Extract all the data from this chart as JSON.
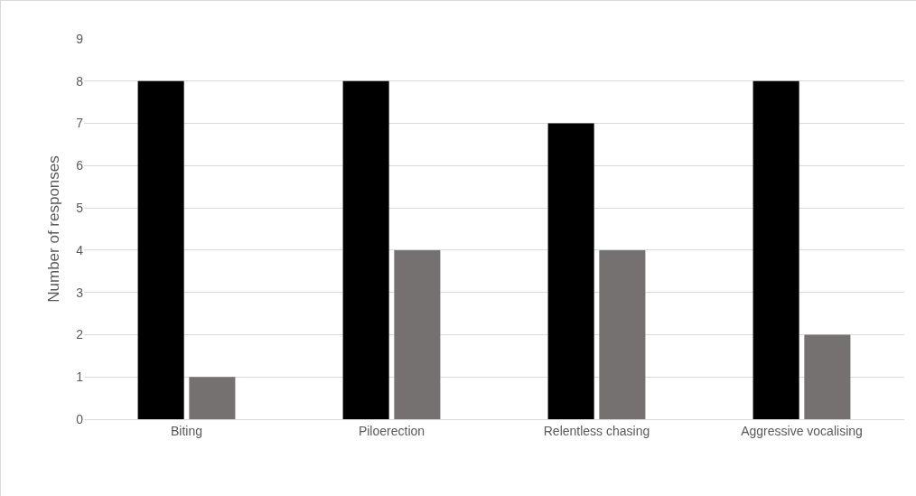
{
  "chart_data": {
    "type": "bar",
    "ylabel": "Number of responses",
    "categories": [
      "Biting",
      "Piloerection",
      "Relentless chasing",
      "Aggressive vocalising"
    ],
    "series": [
      {
        "color": "#000000",
        "values": [
          8,
          8,
          7,
          8
        ]
      },
      {
        "color": "#767171",
        "values": [
          1,
          4,
          4,
          2
        ]
      }
    ],
    "ylim": [
      0,
      9
    ],
    "yticks": [
      0,
      1,
      2,
      3,
      4,
      5,
      6,
      7,
      8,
      9
    ],
    "grid": "y"
  }
}
